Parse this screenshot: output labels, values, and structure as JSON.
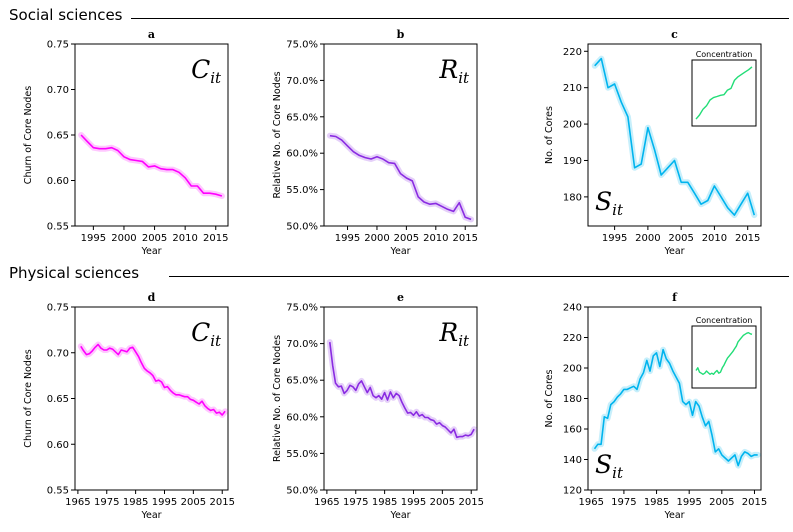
{
  "sections": {
    "social": "Social sciences",
    "physical": "Physical sciences"
  },
  "chart_data": [
    {
      "type": "line",
      "panel": "a",
      "symbol": "C",
      "subscript": "it",
      "xlabel": "Year",
      "ylabel": "Churn of Core Nodes",
      "xlim": [
        1992,
        2017
      ],
      "ylim": [
        0.55,
        0.75
      ],
      "xticks": [
        1995,
        2000,
        2005,
        2010,
        2015
      ],
      "yticks": [
        0.55,
        0.6,
        0.65,
        0.7,
        0.75
      ],
      "ytick_labels": [
        "0.55",
        "0.60",
        "0.65",
        "0.70",
        "0.75"
      ],
      "color": "#ff00ff",
      "x": [
        1993,
        1994,
        1995,
        1996,
        1997,
        1998,
        1999,
        2000,
        2001,
        2002,
        2003,
        2004,
        2005,
        2006,
        2007,
        2008,
        2009,
        2010,
        2011,
        2012,
        2013,
        2014,
        2015,
        2016
      ],
      "y": [
        0.65,
        0.643,
        0.636,
        0.635,
        0.635,
        0.636,
        0.633,
        0.626,
        0.623,
        0.622,
        0.621,
        0.615,
        0.616,
        0.613,
        0.612,
        0.612,
        0.609,
        0.603,
        0.594,
        0.594,
        0.586,
        0.586,
        0.585,
        0.583
      ]
    },
    {
      "type": "line",
      "panel": "b",
      "symbol": "R",
      "subscript": "it",
      "xlabel": "Year",
      "ylabel": "Relative No. of Core Nodes",
      "xlim": [
        1991,
        2017
      ],
      "ylim": [
        50,
        75
      ],
      "xticks": [
        1995,
        2000,
        2005,
        2010,
        2015
      ],
      "yticks": [
        50,
        55,
        60,
        65,
        70,
        75
      ],
      "ytick_labels": [
        "50.0%",
        "55.0%",
        "60.0%",
        "65.0%",
        "70.0%",
        "75.0%"
      ],
      "color": "#8a2be2",
      "x": [
        1992,
        1993,
        1994,
        1995,
        1996,
        1997,
        1998,
        1999,
        2000,
        2001,
        2002,
        2003,
        2004,
        2005,
        2006,
        2007,
        2008,
        2009,
        2010,
        2011,
        2012,
        2013,
        2014,
        2015,
        2016
      ],
      "y": [
        62.4,
        62.3,
        61.8,
        61.0,
        60.2,
        59.7,
        59.4,
        59.2,
        59.5,
        59.2,
        58.7,
        58.6,
        57.2,
        56.6,
        56.2,
        54.0,
        53.3,
        53.0,
        53.1,
        52.7,
        52.3,
        52.0,
        53.2,
        51.2,
        50.9
      ]
    },
    {
      "type": "line",
      "panel": "c",
      "symbol": "S",
      "subscript": "it",
      "xlabel": "Year",
      "ylabel": "No. of Cores",
      "xlim": [
        1991,
        2017
      ],
      "ylim": [
        172,
        222
      ],
      "xticks": [
        1995,
        2000,
        2005,
        2010,
        2015
      ],
      "yticks": [
        180,
        190,
        200,
        210,
        220
      ],
      "ytick_labels": [
        "180",
        "190",
        "200",
        "210",
        "220"
      ],
      "color": "#00b4ee",
      "x": [
        1992,
        1993,
        1994,
        1995,
        1996,
        1997,
        1998,
        1999,
        2000,
        2001,
        2002,
        2003,
        2004,
        2005,
        2006,
        2007,
        2008,
        2009,
        2010,
        2011,
        2012,
        2013,
        2014,
        2015,
        2016
      ],
      "y": [
        216,
        218,
        210,
        211,
        206,
        202,
        188,
        189,
        199,
        193,
        186,
        188,
        190,
        184,
        184,
        181,
        178,
        179,
        183,
        180,
        177,
        175,
        178,
        181,
        175
      ],
      "inset": {
        "title": "Concentration",
        "color": "#22dd77",
        "y": [
          0.05,
          0.12,
          0.22,
          0.28,
          0.38,
          0.42,
          0.44,
          0.46,
          0.47,
          0.55,
          0.58,
          0.72,
          0.78,
          0.82,
          0.86,
          0.9,
          0.95
        ]
      }
    },
    {
      "type": "line",
      "panel": "d",
      "symbol": "C",
      "subscript": "it",
      "xlabel": "Year",
      "ylabel": "Churn of Core Nodes",
      "xlim": [
        1964,
        2017
      ],
      "ylim": [
        0.55,
        0.75
      ],
      "xticks": [
        1965,
        1975,
        1985,
        1995,
        2005,
        2015
      ],
      "yticks": [
        0.55,
        0.6,
        0.65,
        0.7,
        0.75
      ],
      "ytick_labels": [
        "0.55",
        "0.60",
        "0.65",
        "0.70",
        "0.75"
      ],
      "color": "#ff00ff",
      "x": [
        1966,
        1967,
        1968,
        1969,
        1970,
        1971,
        1972,
        1973,
        1974,
        1975,
        1976,
        1977,
        1978,
        1979,
        1980,
        1981,
        1982,
        1983,
        1984,
        1985,
        1986,
        1987,
        1988,
        1989,
        1990,
        1991,
        1992,
        1993,
        1994,
        1995,
        1996,
        1997,
        1998,
        1999,
        2000,
        2001,
        2002,
        2003,
        2004,
        2005,
        2006,
        2007,
        2008,
        2009,
        2010,
        2011,
        2012,
        2013,
        2014,
        2015,
        2016
      ],
      "y": [
        0.707,
        0.702,
        0.698,
        0.699,
        0.702,
        0.706,
        0.709,
        0.705,
        0.703,
        0.703,
        0.705,
        0.704,
        0.701,
        0.698,
        0.703,
        0.702,
        0.701,
        0.705,
        0.706,
        0.701,
        0.696,
        0.689,
        0.683,
        0.68,
        0.678,
        0.675,
        0.669,
        0.67,
        0.668,
        0.662,
        0.663,
        0.659,
        0.656,
        0.654,
        0.654,
        0.653,
        0.652,
        0.652,
        0.649,
        0.648,
        0.646,
        0.644,
        0.647,
        0.642,
        0.639,
        0.637,
        0.638,
        0.634,
        0.635,
        0.632,
        0.636
      ]
    },
    {
      "type": "line",
      "panel": "e",
      "symbol": "R",
      "subscript": "it",
      "xlabel": "Year",
      "ylabel": "Relative No. of Core Nodes",
      "xlim": [
        1964,
        2017
      ],
      "ylim": [
        50,
        75
      ],
      "xticks": [
        1965,
        1975,
        1985,
        1995,
        2005,
        2015
      ],
      "yticks": [
        50,
        55,
        60,
        65,
        70,
        75
      ],
      "ytick_labels": [
        "50.0%",
        "55.0%",
        "60.0%",
        "65.0%",
        "70.0%",
        "75.0%"
      ],
      "color": "#8a2be2",
      "x": [
        1966,
        1967,
        1968,
        1969,
        1970,
        1971,
        1972,
        1973,
        1974,
        1975,
        1976,
        1977,
        1978,
        1979,
        1980,
        1981,
        1982,
        1983,
        1984,
        1985,
        1986,
        1987,
        1988,
        1989,
        1990,
        1991,
        1992,
        1993,
        1994,
        1995,
        1996,
        1997,
        1998,
        1999,
        2000,
        2001,
        2002,
        2003,
        2004,
        2005,
        2006,
        2007,
        2008,
        2009,
        2010,
        2011,
        2012,
        2013,
        2014,
        2015,
        2016
      ],
      "y": [
        70.2,
        67.0,
        64.6,
        64.1,
        64.2,
        63.2,
        63.6,
        64.3,
        64.1,
        63.6,
        64.5,
        64.9,
        64.1,
        63.3,
        64.0,
        62.9,
        62.6,
        62.9,
        62.4,
        63.3,
        62.3,
        63.4,
        62.6,
        63.2,
        62.9,
        62.0,
        61.2,
        60.5,
        60.6,
        60.2,
        60.7,
        60.1,
        60.3,
        59.9,
        59.9,
        59.6,
        59.5,
        59.0,
        59.2,
        58.8,
        58.6,
        58.2,
        57.8,
        58.3,
        57.2,
        57.3,
        57.3,
        57.5,
        57.4,
        57.6,
        58.3
      ]
    },
    {
      "type": "line",
      "panel": "f",
      "symbol": "S",
      "subscript": "it",
      "xlabel": "Year",
      "ylabel": "No. of Cores",
      "xlim": [
        1964,
        2017
      ],
      "ylim": [
        120,
        240
      ],
      "xticks": [
        1965,
        1975,
        1985,
        1995,
        2005,
        2015
      ],
      "yticks": [
        120,
        140,
        160,
        180,
        200,
        220,
        240
      ],
      "ytick_labels": [
        "120",
        "140",
        "160",
        "180",
        "200",
        "220",
        "240"
      ],
      "color": "#00b4ee",
      "x": [
        1966,
        1967,
        1968,
        1969,
        1970,
        1971,
        1972,
        1973,
        1974,
        1975,
        1976,
        1977,
        1978,
        1979,
        1980,
        1981,
        1982,
        1983,
        1984,
        1985,
        1986,
        1987,
        1988,
        1989,
        1990,
        1991,
        1992,
        1993,
        1994,
        1995,
        1996,
        1997,
        1998,
        1999,
        2000,
        2001,
        2002,
        2003,
        2004,
        2005,
        2006,
        2007,
        2008,
        2009,
        2010,
        2011,
        2012,
        2013,
        2014,
        2015,
        2016
      ],
      "y": [
        147,
        150,
        150,
        168,
        167,
        176,
        178,
        181,
        183,
        186,
        186,
        187,
        188,
        186,
        193,
        197,
        205,
        198,
        208,
        210,
        201,
        212,
        206,
        203,
        198,
        194,
        190,
        178,
        176,
        178,
        169,
        178,
        175,
        168,
        162,
        165,
        156,
        145,
        147,
        143,
        141,
        139,
        141,
        143,
        136,
        142,
        145,
        144,
        142,
        143,
        143
      ],
      "inset": {
        "title": "Concentration",
        "color": "#22dd77",
        "y": [
          0.25,
          0.3,
          0.22,
          0.2,
          0.18,
          0.2,
          0.24,
          0.21,
          0.18,
          0.2,
          0.18,
          0.22,
          0.25,
          0.2,
          0.22,
          0.3,
          0.35,
          0.42,
          0.48,
          0.52,
          0.56,
          0.6,
          0.65,
          0.7,
          0.78,
          0.82,
          0.86,
          0.9,
          0.92,
          0.94,
          0.95,
          0.93,
          0.92
        ]
      }
    }
  ]
}
